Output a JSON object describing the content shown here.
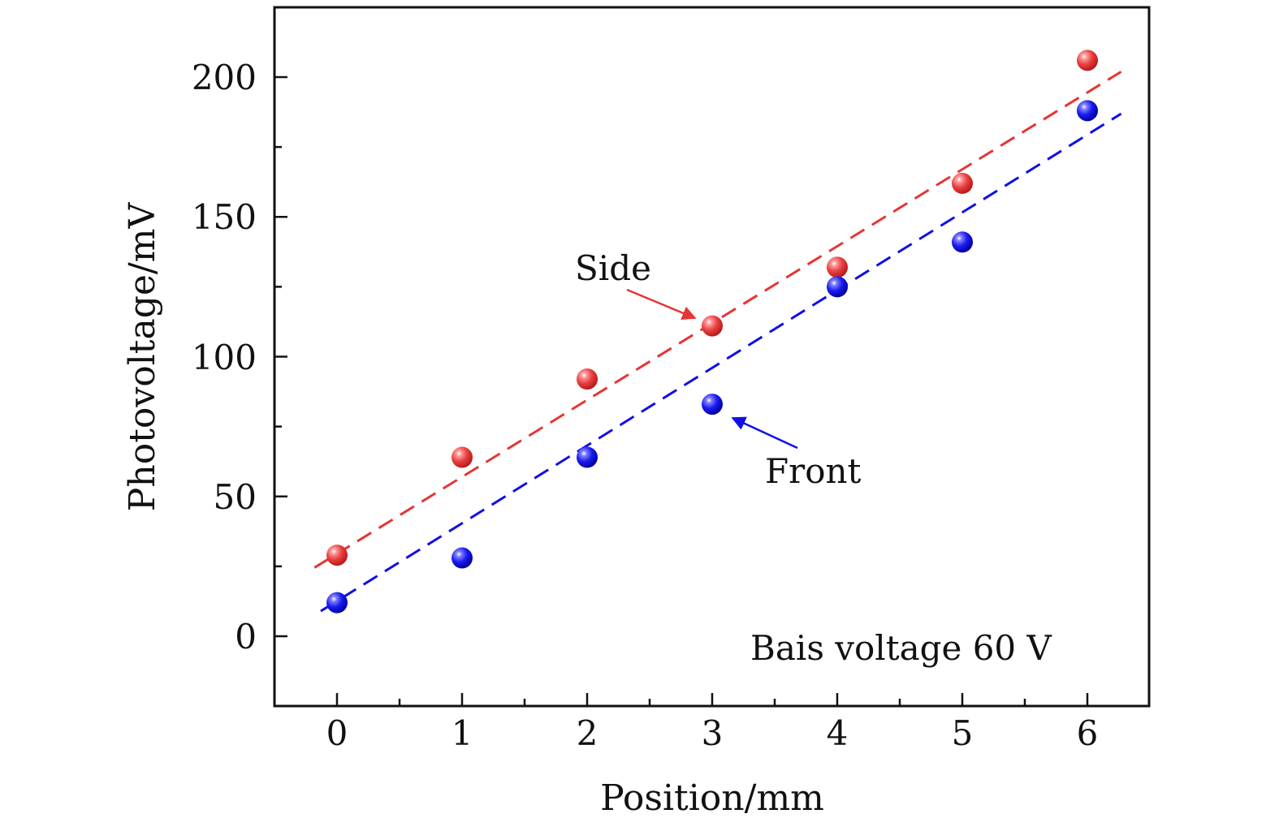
{
  "chart_data": {
    "type": "scatter",
    "title": "",
    "xlabel": "Position/mm",
    "ylabel": "Photovoltage/mV",
    "xlim": [
      -0.5,
      6.5
    ],
    "ylim": [
      -25,
      225
    ],
    "xticks": [
      0,
      1,
      2,
      3,
      4,
      5,
      6
    ],
    "yticks": [
      0,
      50,
      100,
      150,
      200
    ],
    "grid": false,
    "series": [
      {
        "name": "Side",
        "color": "#e53535",
        "x": [
          0,
          1,
          2,
          3,
          4,
          5,
          6
        ],
        "y": [
          29,
          64,
          92,
          111,
          132,
          162,
          206
        ],
        "fit": {
          "slope": 27.5,
          "intercept": 29.5,
          "x_range": [
            -0.18,
            6.27
          ]
        }
      },
      {
        "name": "Front",
        "color": "#1010e6",
        "x": [
          0,
          1,
          2,
          3,
          4,
          5,
          6
        ],
        "y": [
          12,
          28,
          64,
          83,
          125,
          141,
          188
        ],
        "fit": {
          "slope": 27.8,
          "intercept": 12.6,
          "x_range": [
            -0.13,
            6.27
          ]
        }
      }
    ],
    "annotations": [
      {
        "text": "Side",
        "points_to": {
          "x": 3,
          "y": 111
        },
        "color": "#e53535"
      },
      {
        "text": "Front",
        "points_to": {
          "x": 3,
          "y": 83
        },
        "color": "#1010e6"
      },
      {
        "text": "Bais voltage 60 V"
      }
    ]
  }
}
